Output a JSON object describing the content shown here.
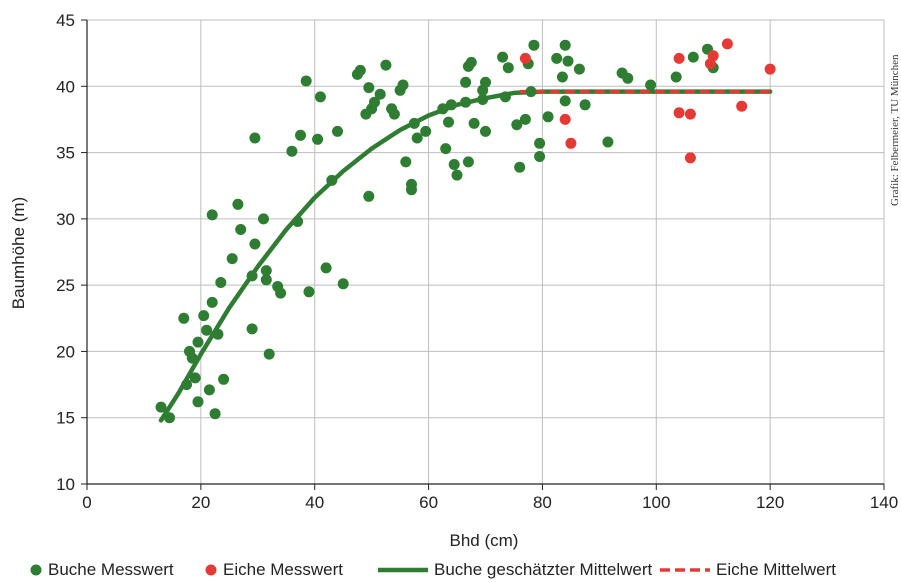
{
  "credit": "Grafik: Felbermeier, TU München",
  "colors": {
    "buche": "#2e7d32",
    "eiche": "#e53935",
    "grid": "#bdbdbd",
    "axis": "#222222"
  },
  "chart_data": {
    "type": "scatter",
    "xlabel": "Bhd (cm)",
    "ylabel": "Baumhöhe (m)",
    "xlim": [
      0,
      140
    ],
    "ylim": [
      10,
      45
    ],
    "xticks": [
      0,
      20,
      40,
      60,
      80,
      100,
      120,
      140
    ],
    "yticks": [
      10,
      15,
      20,
      25,
      30,
      35,
      40,
      45
    ],
    "grid": true,
    "legend_position": "bottom",
    "legend": [
      {
        "label": "Buche Messwert",
        "kind": "point",
        "color": "#2e7d32"
      },
      {
        "label": "Eiche Messwert",
        "kind": "point",
        "color": "#e53935"
      },
      {
        "label": "Buche geschätzter Mittelwert",
        "kind": "line",
        "color": "#2e7d32"
      },
      {
        "label": "Eiche Mittelwert",
        "kind": "dashed-line",
        "color": "#e53935"
      }
    ],
    "series": [
      {
        "name": "Buche Messwert",
        "kind": "scatter",
        "color": "#2e7d32",
        "points": [
          [
            13,
            15.8
          ],
          [
            14.5,
            15
          ],
          [
            17,
            22.5
          ],
          [
            17.5,
            17.5
          ],
          [
            18,
            20
          ],
          [
            18.5,
            19.5
          ],
          [
            19,
            18
          ],
          [
            19.5,
            20.7
          ],
          [
            19.5,
            16.2
          ],
          [
            20.5,
            22.7
          ],
          [
            21,
            21.6
          ],
          [
            21.5,
            17.1
          ],
          [
            22,
            30.3
          ],
          [
            22,
            23.7
          ],
          [
            22.5,
            15.3
          ],
          [
            23,
            21.3
          ],
          [
            23.5,
            25.2
          ],
          [
            24,
            17.9
          ],
          [
            25.5,
            27
          ],
          [
            26.5,
            31.1
          ],
          [
            27,
            29.2
          ],
          [
            29,
            25.7
          ],
          [
            29,
            21.7
          ],
          [
            29.5,
            28.1
          ],
          [
            29.5,
            36.1
          ],
          [
            31,
            30
          ],
          [
            31.5,
            26.1
          ],
          [
            31.5,
            25.4
          ],
          [
            32,
            19.8
          ],
          [
            33.5,
            24.9
          ],
          [
            34,
            24.4
          ],
          [
            36,
            35.1
          ],
          [
            37,
            29.8
          ],
          [
            37.5,
            36.3
          ],
          [
            38.5,
            40.4
          ],
          [
            39,
            24.5
          ],
          [
            40.5,
            36
          ],
          [
            41,
            39.2
          ],
          [
            42,
            26.3
          ],
          [
            43,
            32.9
          ],
          [
            44,
            36.6
          ],
          [
            45,
            25.1
          ],
          [
            47.5,
            40.9
          ],
          [
            48,
            41.2
          ],
          [
            49,
            37.9
          ],
          [
            49.5,
            39.9
          ],
          [
            49.5,
            31.7
          ],
          [
            50,
            38.3
          ],
          [
            50.5,
            38.8
          ],
          [
            51.5,
            39.4
          ],
          [
            52.5,
            41.6
          ],
          [
            53.5,
            38.3
          ],
          [
            54,
            37.9
          ],
          [
            55,
            39.7
          ],
          [
            55.5,
            40.1
          ],
          [
            56,
            34.3
          ],
          [
            57,
            32.6
          ],
          [
            57,
            32.2
          ],
          [
            57.5,
            37.2
          ],
          [
            58,
            36.1
          ],
          [
            59.5,
            36.6
          ],
          [
            62.5,
            38.3
          ],
          [
            63,
            35.3
          ],
          [
            63.5,
            37.3
          ],
          [
            64,
            38.6
          ],
          [
            64.5,
            34.1
          ],
          [
            65,
            33.3
          ],
          [
            66.5,
            38.8
          ],
          [
            66.5,
            40.3
          ],
          [
            67,
            34.3
          ],
          [
            67,
            41.5
          ],
          [
            67.5,
            41.8
          ],
          [
            68,
            37.2
          ],
          [
            69.5,
            39
          ],
          [
            69.5,
            39.7
          ],
          [
            70,
            40.3
          ],
          [
            70,
            36.6
          ],
          [
            73,
            42.2
          ],
          [
            73.5,
            39.2
          ],
          [
            74,
            41.4
          ],
          [
            75.5,
            37.1
          ],
          [
            76,
            33.9
          ],
          [
            77,
            37.5
          ],
          [
            77.5,
            41.7
          ],
          [
            78,
            39.6
          ],
          [
            78.5,
            43.1
          ],
          [
            79.5,
            35.7
          ],
          [
            79.5,
            34.7
          ],
          [
            81,
            37.7
          ],
          [
            82.5,
            42.1
          ],
          [
            83.5,
            40.7
          ],
          [
            84,
            43.1
          ],
          [
            84,
            38.9
          ],
          [
            84.5,
            41.9
          ],
          [
            86.5,
            41.3
          ],
          [
            87.5,
            38.6
          ],
          [
            91.5,
            35.8
          ],
          [
            94,
            41
          ],
          [
            95,
            40.6
          ],
          [
            99,
            40.1
          ],
          [
            103.5,
            40.7
          ],
          [
            106.5,
            42.2
          ],
          [
            109,
            42.8
          ],
          [
            110,
            41.4
          ]
        ]
      },
      {
        "name": "Eiche Messwert",
        "kind": "scatter",
        "color": "#e53935",
        "points": [
          [
            77,
            42.1
          ],
          [
            84,
            37.5
          ],
          [
            85,
            35.7
          ],
          [
            104,
            42.1
          ],
          [
            104,
            38
          ],
          [
            106,
            37.9
          ],
          [
            106,
            34.6
          ],
          [
            109.5,
            41.7
          ],
          [
            110,
            42.3
          ],
          [
            112.5,
            43.2
          ],
          [
            115,
            38.5
          ],
          [
            120,
            41.3
          ]
        ]
      },
      {
        "name": "Buche geschätzter Mittelwert",
        "kind": "line",
        "color": "#2e7d32",
        "points": [
          [
            13,
            14.8
          ],
          [
            16,
            16.8
          ],
          [
            20,
            19.8
          ],
          [
            25,
            23.3
          ],
          [
            30,
            26.4
          ],
          [
            35,
            29.2
          ],
          [
            40,
            31.6
          ],
          [
            45,
            33.6
          ],
          [
            50,
            35.3
          ],
          [
            55,
            36.7
          ],
          [
            60,
            37.8
          ],
          [
            65,
            38.6
          ],
          [
            70,
            39.1
          ],
          [
            75,
            39.5
          ],
          [
            80,
            39.6
          ],
          [
            90,
            39.6
          ],
          [
            100,
            39.6
          ],
          [
            110,
            39.6
          ],
          [
            120,
            39.6
          ]
        ]
      },
      {
        "name": "Eiche Mittelwert",
        "kind": "dashed-line",
        "color": "#e53935",
        "points": [
          [
            76,
            39.6
          ],
          [
            120,
            39.6
          ]
        ]
      }
    ]
  }
}
